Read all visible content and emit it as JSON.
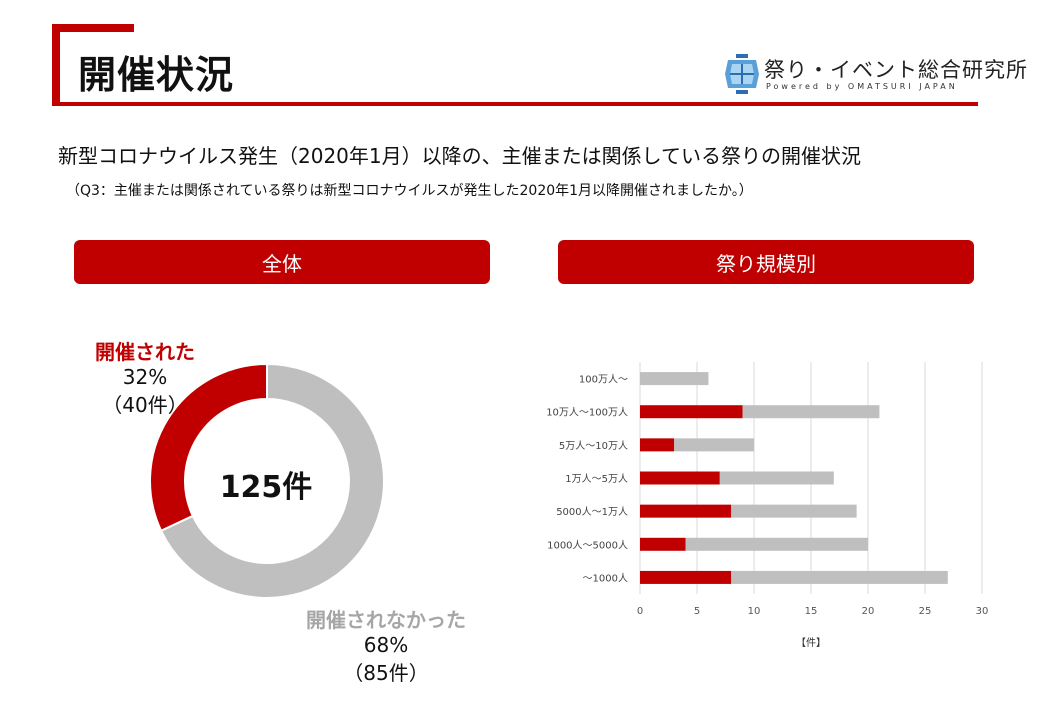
{
  "header": {
    "title": "開催状況",
    "logo_text": "祭り・イベント総合研究所",
    "logo_sub": "Powered by OMATSURI JAPAN"
  },
  "subtitle": "新型コロナウイルス発生（2020年1月）以降の、主催または関係している祭りの開催状況",
  "question": "（Q3：主催または関係されている祭りは新型コロナウイルスが発生した2020年1月以降開催されましたか。）",
  "sections": {
    "overall": "全体",
    "by_scale": "祭り規模別"
  },
  "colors": {
    "held": "#c00000",
    "not_held": "#bfbfbf"
  },
  "chart_data": [
    {
      "type": "pie",
      "total_label": "125件",
      "slices": [
        {
          "name": "開催された",
          "value": 40,
          "percent_label": "32%",
          "count_label": "（40件）"
        },
        {
          "name": "開催されなかった",
          "value": 85,
          "percent_label": "68%",
          "count_label": "（85件）"
        }
      ]
    },
    {
      "type": "bar",
      "orientation": "horizontal",
      "stacked": true,
      "categories": [
        "100万人～",
        "10万人～100万人",
        "5万人～10万人",
        "1万人～5万人",
        "5000人～1万人",
        "1000人～5000人",
        "～1000人"
      ],
      "series": [
        {
          "values": [
            0,
            9,
            3,
            7,
            8,
            4,
            8
          ]
        },
        {
          "values": [
            6,
            12,
            7,
            10,
            11,
            16,
            19
          ]
        }
      ],
      "xlim": [
        0,
        30
      ],
      "xticks": [
        0,
        5,
        10,
        15,
        20,
        25,
        30
      ],
      "xlabel": "【件】",
      "grid": true
    }
  ]
}
